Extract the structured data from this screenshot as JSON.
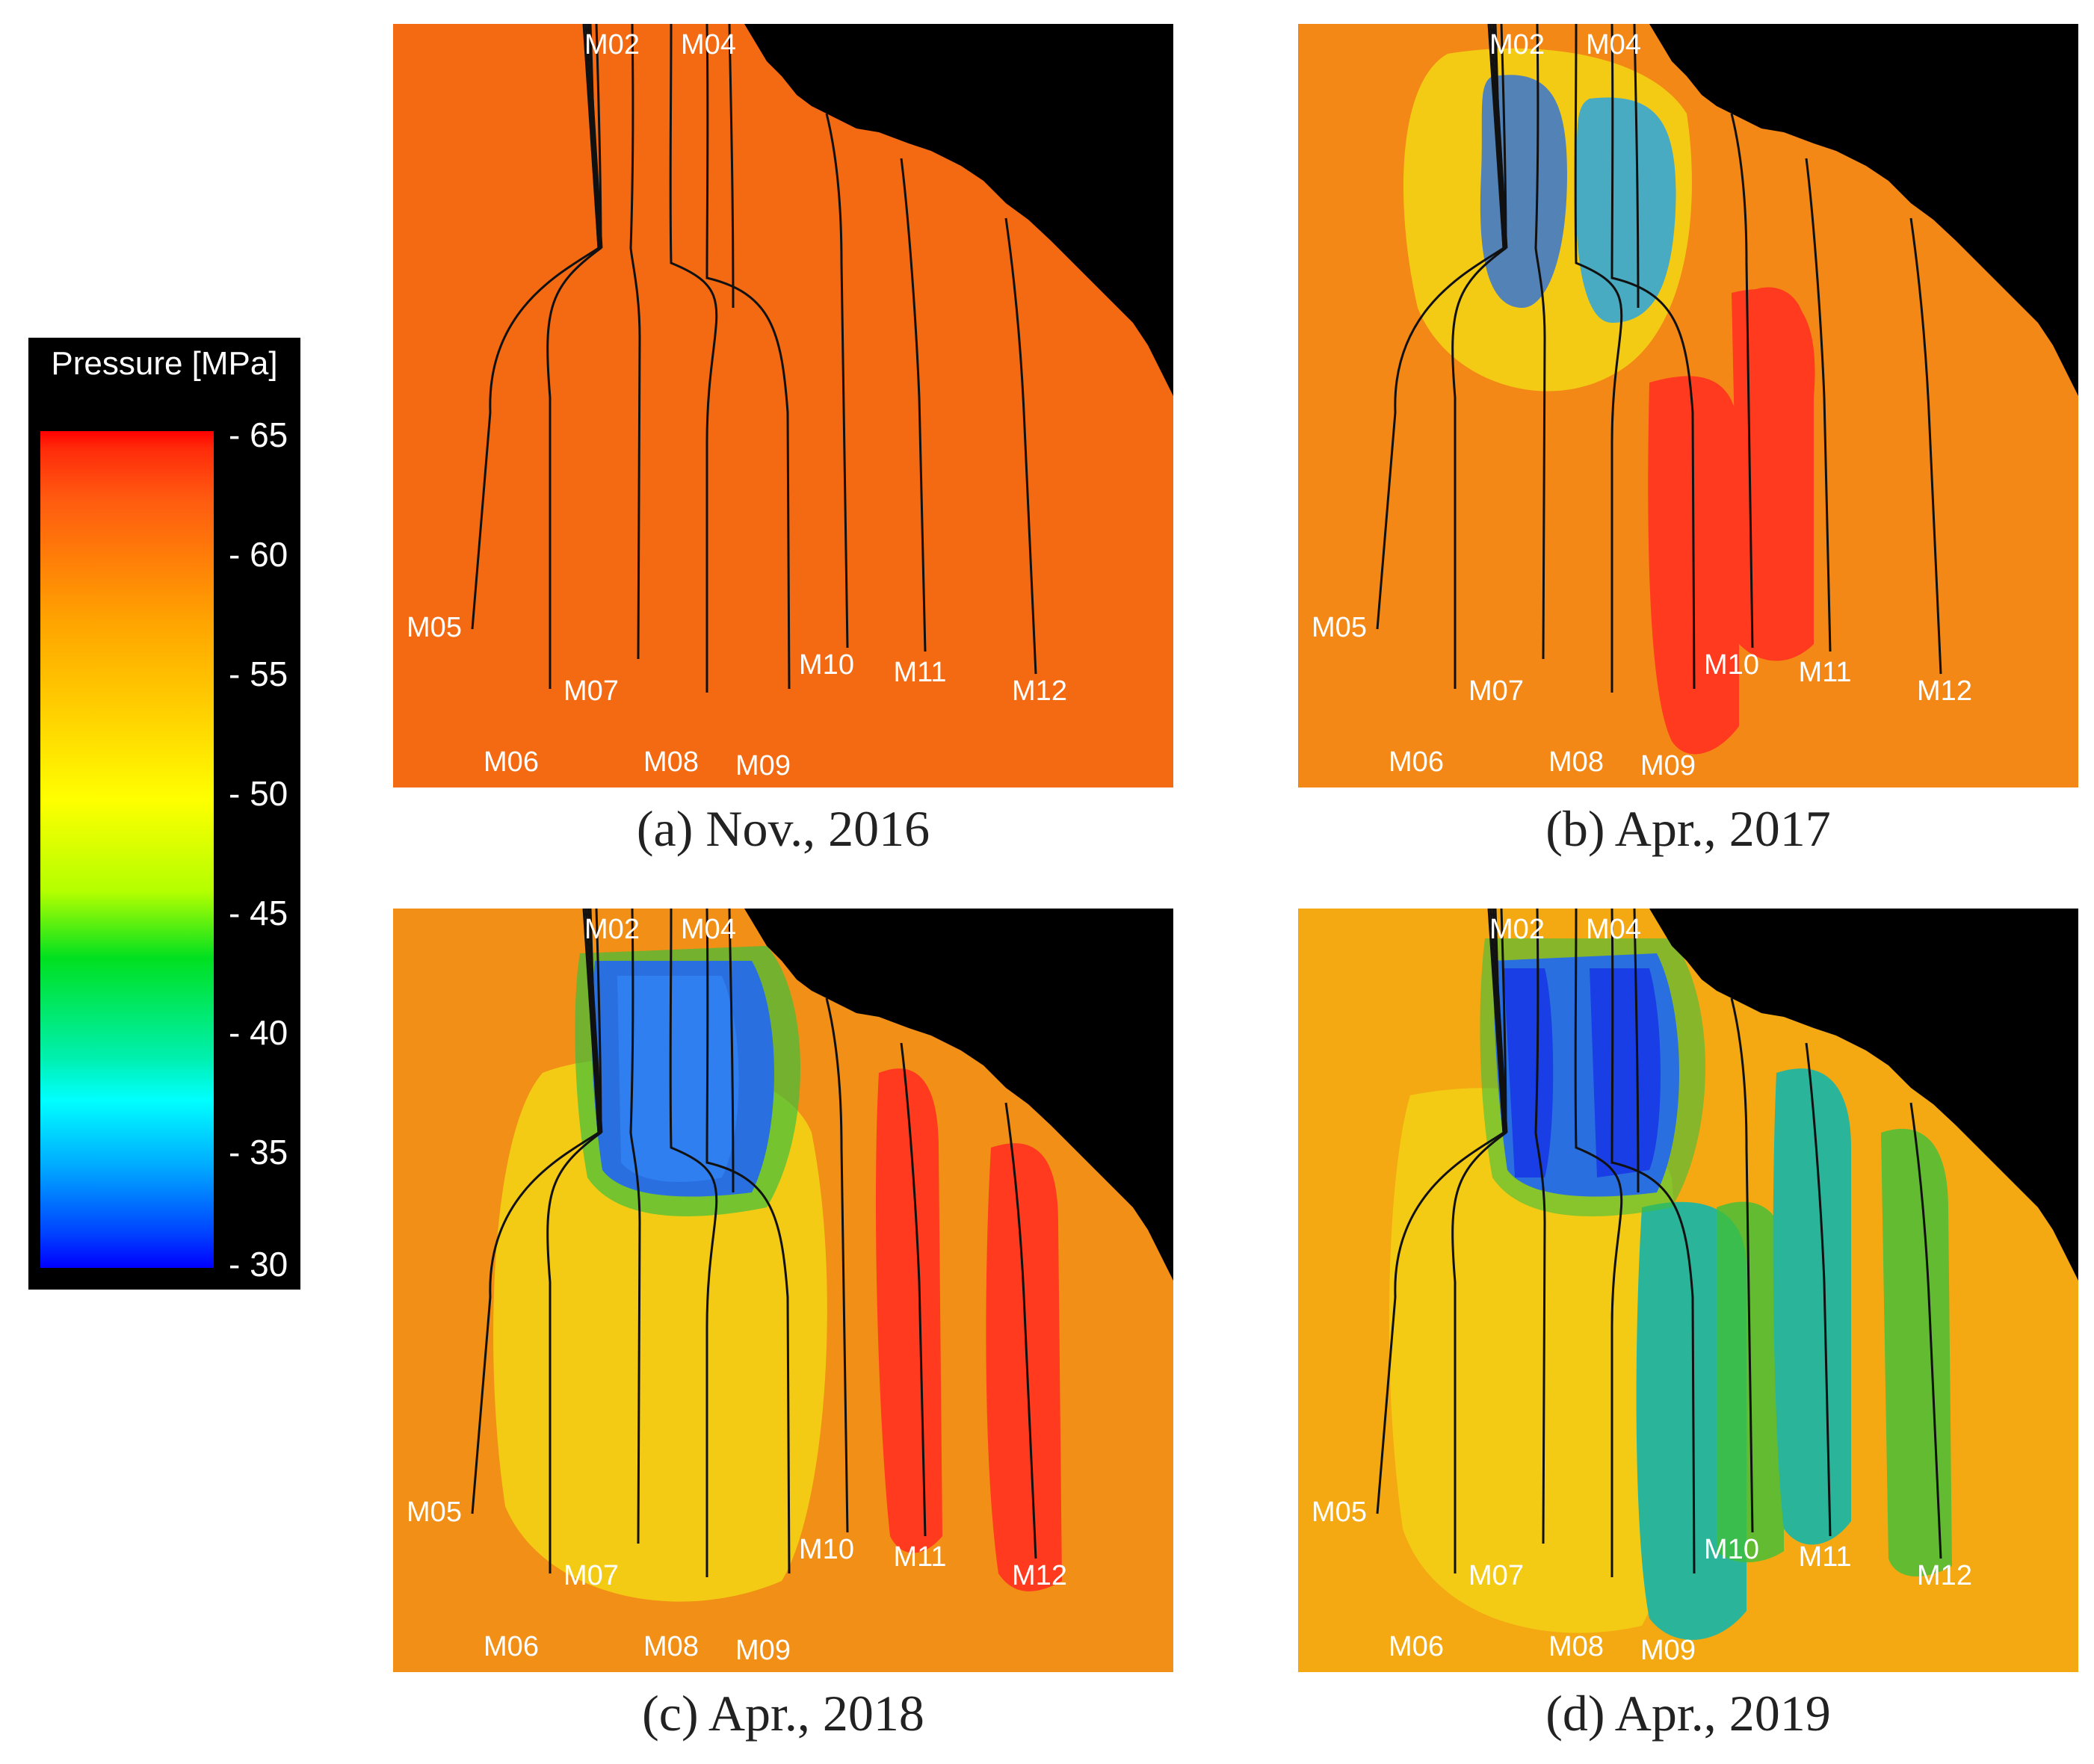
{
  "legend": {
    "title": "Pressure [MPa]",
    "ticks": [
      "- 65",
      "- 60",
      "- 55",
      "- 50",
      "- 45",
      "- 40",
      "- 35",
      "- 30"
    ]
  },
  "wells": [
    "M02",
    "M04",
    "M05",
    "M06",
    "M07",
    "M08",
    "M09",
    "M10",
    "M11",
    "M12"
  ],
  "panels": [
    {
      "id": "a",
      "caption": "(a) Nov., 2016"
    },
    {
      "id": "b",
      "caption": "(b) Apr., 2017"
    },
    {
      "id": "c",
      "caption": "(c) Apr., 2018"
    },
    {
      "id": "d",
      "caption": "(d) Apr., 2019"
    }
  ],
  "colors": {
    "background_orange": "#f36a12",
    "yellow": "#f4cb14",
    "green": "#3fbf3a",
    "teal": "#2ab59a",
    "blue": "#2a6fe0",
    "deep_blue": "#1a3ee6",
    "red": "#ff3a1e",
    "black": "#000000"
  }
}
